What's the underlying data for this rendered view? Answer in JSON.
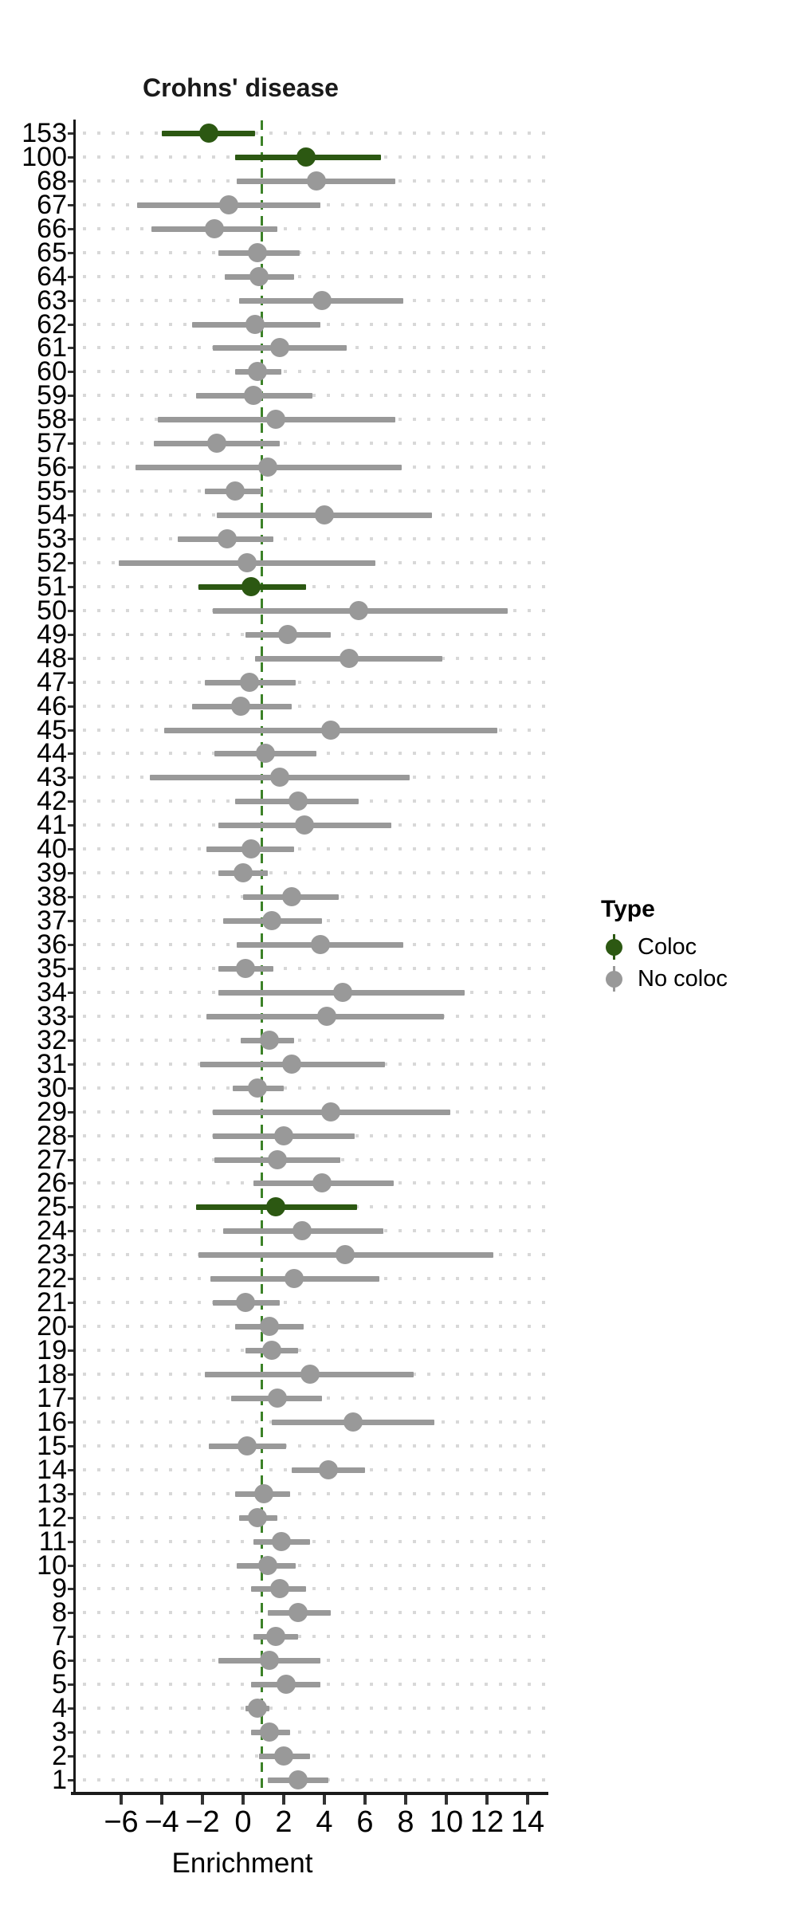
{
  "chart_data": {
    "type": "scatter",
    "subtype": "forest-pointrange",
    "title": "Crohns' disease",
    "xlabel": "Enrichment",
    "xlim": [
      -8.3,
      14.9
    ],
    "grid": "dotted-horizontal-per-row",
    "reference_line_x": 1,
    "x_axis": {
      "ticks": [
        {
          "value": -6,
          "label": "−6"
        },
        {
          "value": -4,
          "label": "−4"
        },
        {
          "value": -2,
          "label": "−2"
        },
        {
          "value": 0,
          "label": "0"
        },
        {
          "value": 2,
          "label": "2"
        },
        {
          "value": 4,
          "label": "4"
        },
        {
          "value": 6,
          "label": "6"
        },
        {
          "value": 8,
          "label": "8"
        },
        {
          "value": 10,
          "label": "10"
        },
        {
          "value": 12,
          "label": "12"
        },
        {
          "value": 14,
          "label": "14"
        }
      ]
    },
    "legend": {
      "title": "Type",
      "position": "right-middle",
      "items": [
        {
          "label": "Coloc",
          "color": "#2c5812"
        },
        {
          "label": "No coloc",
          "color": "#999999"
        }
      ]
    },
    "colors": {
      "coloc": "#2c5812",
      "no_coloc": "#999999",
      "reference_line": "#3c8228",
      "grid_dots": "#d8d8d8",
      "axis": "#1a1a1a"
    },
    "rows": [
      {
        "label": "153",
        "est": -1.7,
        "lo": -4.0,
        "hi": 0.6,
        "type": "Coloc"
      },
      {
        "label": "100",
        "est": 3.1,
        "lo": -0.4,
        "hi": 6.8,
        "type": "Coloc"
      },
      {
        "label": "68",
        "est": 3.6,
        "lo": -0.3,
        "hi": 7.5,
        "type": "No coloc"
      },
      {
        "label": "67",
        "est": -0.7,
        "lo": -5.2,
        "hi": 3.8,
        "type": "No coloc"
      },
      {
        "label": "66",
        "est": -1.4,
        "lo": -4.5,
        "hi": 1.7,
        "type": "No coloc"
      },
      {
        "label": "65",
        "est": 0.7,
        "lo": -1.2,
        "hi": 2.8,
        "type": "No coloc"
      },
      {
        "label": "64",
        "est": 0.8,
        "lo": -0.9,
        "hi": 2.5,
        "type": "No coloc"
      },
      {
        "label": "63",
        "est": 3.9,
        "lo": -0.2,
        "hi": 7.9,
        "type": "No coloc"
      },
      {
        "label": "62",
        "est": 0.6,
        "lo": -2.5,
        "hi": 3.8,
        "type": "No coloc"
      },
      {
        "label": "61",
        "est": 1.8,
        "lo": -1.5,
        "hi": 5.1,
        "type": "No coloc"
      },
      {
        "label": "60",
        "est": 0.7,
        "lo": -0.4,
        "hi": 1.9,
        "type": "No coloc"
      },
      {
        "label": "59",
        "est": 0.5,
        "lo": -2.3,
        "hi": 3.4,
        "type": "No coloc"
      },
      {
        "label": "58",
        "est": 1.6,
        "lo": -4.2,
        "hi": 7.5,
        "type": "No coloc"
      },
      {
        "label": "57",
        "est": -1.3,
        "lo": -4.4,
        "hi": 1.8,
        "type": "No coloc"
      },
      {
        "label": "56",
        "est": 1.2,
        "lo": -5.3,
        "hi": 7.8,
        "type": "No coloc"
      },
      {
        "label": "55",
        "est": -0.4,
        "lo": -1.9,
        "hi": 0.9,
        "type": "No coloc"
      },
      {
        "label": "54",
        "est": 4.0,
        "lo": -1.3,
        "hi": 9.3,
        "type": "No coloc"
      },
      {
        "label": "53",
        "est": -0.8,
        "lo": -3.2,
        "hi": 1.5,
        "type": "No coloc"
      },
      {
        "label": "52",
        "est": 0.2,
        "lo": -6.1,
        "hi": 6.5,
        "type": "No coloc"
      },
      {
        "label": "51",
        "est": 0.4,
        "lo": -2.2,
        "hi": 3.1,
        "type": "Coloc"
      },
      {
        "label": "50",
        "est": 5.7,
        "lo": -1.5,
        "hi": 13.0,
        "type": "No coloc"
      },
      {
        "label": "49",
        "est": 2.2,
        "lo": 0.1,
        "hi": 4.3,
        "type": "No coloc"
      },
      {
        "label": "48",
        "est": 5.2,
        "lo": 0.6,
        "hi": 9.8,
        "type": "No coloc"
      },
      {
        "label": "47",
        "est": 0.3,
        "lo": -1.9,
        "hi": 2.6,
        "type": "No coloc"
      },
      {
        "label": "46",
        "est": -0.1,
        "lo": -2.5,
        "hi": 2.4,
        "type": "No coloc"
      },
      {
        "label": "45",
        "est": 4.3,
        "lo": -3.9,
        "hi": 12.5,
        "type": "No coloc"
      },
      {
        "label": "44",
        "est": 1.1,
        "lo": -1.4,
        "hi": 3.6,
        "type": "No coloc"
      },
      {
        "label": "43",
        "est": 1.8,
        "lo": -4.6,
        "hi": 8.2,
        "type": "No coloc"
      },
      {
        "label": "42",
        "est": 2.7,
        "lo": -0.4,
        "hi": 5.7,
        "type": "No coloc"
      },
      {
        "label": "41",
        "est": 3.0,
        "lo": -1.2,
        "hi": 7.3,
        "type": "No coloc"
      },
      {
        "label": "40",
        "est": 0.4,
        "lo": -1.8,
        "hi": 2.5,
        "type": "No coloc"
      },
      {
        "label": "39",
        "est": 0.0,
        "lo": -1.2,
        "hi": 1.2,
        "type": "No coloc"
      },
      {
        "label": "38",
        "est": 2.4,
        "lo": 0.0,
        "hi": 4.7,
        "type": "No coloc"
      },
      {
        "label": "37",
        "est": 1.4,
        "lo": -1.0,
        "hi": 3.9,
        "type": "No coloc"
      },
      {
        "label": "36",
        "est": 3.8,
        "lo": -0.3,
        "hi": 7.9,
        "type": "No coloc"
      },
      {
        "label": "35",
        "est": 0.1,
        "lo": -1.2,
        "hi": 1.5,
        "type": "No coloc"
      },
      {
        "label": "34",
        "est": 4.9,
        "lo": -1.2,
        "hi": 10.9,
        "type": "No coloc"
      },
      {
        "label": "33",
        "est": 4.1,
        "lo": -1.8,
        "hi": 9.9,
        "type": "No coloc"
      },
      {
        "label": "32",
        "est": 1.3,
        "lo": -0.1,
        "hi": 2.5,
        "type": "No coloc"
      },
      {
        "label": "31",
        "est": 2.4,
        "lo": -2.1,
        "hi": 7.0,
        "type": "No coloc"
      },
      {
        "label": "30",
        "est": 0.7,
        "lo": -0.5,
        "hi": 2.0,
        "type": "No coloc"
      },
      {
        "label": "29",
        "est": 4.3,
        "lo": -1.5,
        "hi": 10.2,
        "type": "No coloc"
      },
      {
        "label": "28",
        "est": 2.0,
        "lo": -1.5,
        "hi": 5.5,
        "type": "No coloc"
      },
      {
        "label": "27",
        "est": 1.7,
        "lo": -1.4,
        "hi": 4.8,
        "type": "No coloc"
      },
      {
        "label": "26",
        "est": 3.9,
        "lo": 0.5,
        "hi": 7.4,
        "type": "No coloc"
      },
      {
        "label": "25",
        "est": 1.6,
        "lo": -2.3,
        "hi": 5.6,
        "type": "Coloc"
      },
      {
        "label": "24",
        "est": 2.9,
        "lo": -1.0,
        "hi": 6.9,
        "type": "No coloc"
      },
      {
        "label": "23",
        "est": 5.0,
        "lo": -2.2,
        "hi": 12.3,
        "type": "No coloc"
      },
      {
        "label": "22",
        "est": 2.5,
        "lo": -1.6,
        "hi": 6.7,
        "type": "No coloc"
      },
      {
        "label": "21",
        "est": 0.1,
        "lo": -1.5,
        "hi": 1.8,
        "type": "No coloc"
      },
      {
        "label": "20",
        "est": 1.3,
        "lo": -0.4,
        "hi": 3.0,
        "type": "No coloc"
      },
      {
        "label": "19",
        "est": 1.4,
        "lo": 0.1,
        "hi": 2.7,
        "type": "No coloc"
      },
      {
        "label": "18",
        "est": 3.3,
        "lo": -1.9,
        "hi": 8.4,
        "type": "No coloc"
      },
      {
        "label": "17",
        "est": 1.7,
        "lo": -0.6,
        "hi": 3.9,
        "type": "No coloc"
      },
      {
        "label": "16",
        "est": 5.4,
        "lo": 1.4,
        "hi": 9.4,
        "type": "No coloc"
      },
      {
        "label": "15",
        "est": 0.2,
        "lo": -1.7,
        "hi": 2.1,
        "type": "No coloc"
      },
      {
        "label": "14",
        "est": 4.2,
        "lo": 2.4,
        "hi": 6.0,
        "type": "No coloc"
      },
      {
        "label": "13",
        "est": 1.0,
        "lo": -0.4,
        "hi": 2.3,
        "type": "No coloc"
      },
      {
        "label": "12",
        "est": 0.7,
        "lo": -0.2,
        "hi": 1.7,
        "type": "No coloc"
      },
      {
        "label": "11",
        "est": 1.9,
        "lo": 0.5,
        "hi": 3.3,
        "type": "No coloc"
      },
      {
        "label": "10",
        "est": 1.2,
        "lo": -0.3,
        "hi": 2.6,
        "type": "No coloc"
      },
      {
        "label": "9",
        "est": 1.8,
        "lo": 0.4,
        "hi": 3.1,
        "type": "No coloc"
      },
      {
        "label": "8",
        "est": 2.7,
        "lo": 1.2,
        "hi": 4.3,
        "type": "No coloc"
      },
      {
        "label": "7",
        "est": 1.6,
        "lo": 0.5,
        "hi": 2.7,
        "type": "No coloc"
      },
      {
        "label": "6",
        "est": 1.3,
        "lo": -1.2,
        "hi": 3.8,
        "type": "No coloc"
      },
      {
        "label": "5",
        "est": 2.1,
        "lo": 0.4,
        "hi": 3.8,
        "type": "No coloc"
      },
      {
        "label": "4",
        "est": 0.7,
        "lo": 0.1,
        "hi": 1.3,
        "type": "No coloc"
      },
      {
        "label": "3",
        "est": 1.3,
        "lo": 0.4,
        "hi": 2.3,
        "type": "No coloc"
      },
      {
        "label": "2",
        "est": 2.0,
        "lo": 0.8,
        "hi": 3.3,
        "type": "No coloc"
      },
      {
        "label": "1",
        "est": 2.7,
        "lo": 1.2,
        "hi": 4.2,
        "type": "No coloc"
      }
    ]
  }
}
